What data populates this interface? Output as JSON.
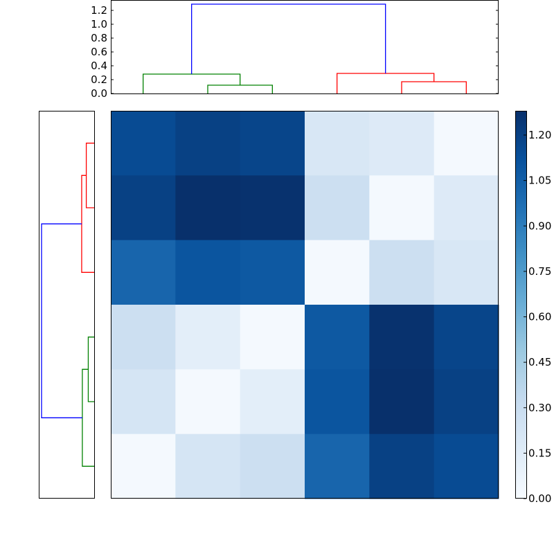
{
  "chart_data": [
    {
      "type": "dendrogram",
      "name": "top-dendrogram",
      "orientation": "top",
      "ylabel": "",
      "yticks": [
        "0.0",
        "0.2",
        "0.4",
        "0.6",
        "0.8",
        "1.0",
        "1.2"
      ],
      "ylim": [
        0,
        1.35
      ],
      "leaf_positions": [
        0,
        1,
        2,
        3,
        4,
        5
      ],
      "links": [
        {
          "left": 1,
          "right": 2,
          "height": 0.12,
          "color": "#008000"
        },
        {
          "left": 0,
          "right": "1-2",
          "height": 0.28,
          "color": "#008000"
        },
        {
          "left": 4,
          "right": 5,
          "height": 0.17,
          "color": "#ff0000"
        },
        {
          "left": 3,
          "right": "4-5",
          "height": 0.29,
          "color": "#ff0000"
        },
        {
          "left": "0-2",
          "right": "3-5",
          "height": 1.29,
          "color": "#0000ff"
        }
      ]
    },
    {
      "type": "dendrogram",
      "name": "left-dendrogram",
      "orientation": "left",
      "leaf_positions": [
        0,
        1,
        2,
        3,
        4,
        5
      ],
      "links": [
        {
          "left": 0,
          "right": 1,
          "height": 0.12,
          "color": "#ff0000"
        },
        {
          "left": "0-1",
          "right": 2,
          "height": 0.19,
          "color": "#ff0000"
        },
        {
          "left": 3,
          "right": 4,
          "height": 0.09,
          "color": "#008000"
        },
        {
          "left": "3-4",
          "right": 5,
          "height": 0.18,
          "color": "#008000"
        },
        {
          "left": "0-2",
          "right": "3-5",
          "height": 0.8,
          "color": "#0000ff"
        }
      ]
    },
    {
      "type": "heatmap",
      "name": "distance-matrix",
      "colormap": "Blues",
      "vmin": 0.0,
      "vmax": 1.28,
      "rows": 6,
      "cols": 6,
      "values": [
        [
          1.15,
          1.2,
          1.18,
          0.2,
          0.17,
          0.02
        ],
        [
          1.2,
          1.28,
          1.27,
          0.28,
          0.02,
          0.17
        ],
        [
          1.02,
          1.1,
          1.08,
          0.02,
          0.28,
          0.2
        ],
        [
          0.28,
          0.13,
          0.02,
          1.08,
          1.27,
          1.18
        ],
        [
          0.22,
          0.02,
          0.13,
          1.1,
          1.28,
          1.2
        ],
        [
          0.02,
          0.22,
          0.28,
          1.02,
          1.2,
          1.15
        ]
      ],
      "colorbar": {
        "ticks": [
          "0.00",
          "0.15",
          "0.30",
          "0.45",
          "0.60",
          "0.75",
          "0.90",
          "1.05",
          "1.20"
        ],
        "range": [
          0.0,
          1.28
        ]
      }
    }
  ],
  "colors": {
    "link_blue": "#0000ff",
    "link_green": "#008000",
    "link_red": "#ff0000",
    "axis": "#000000"
  }
}
